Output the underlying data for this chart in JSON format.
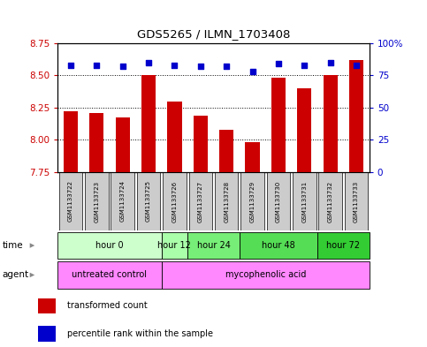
{
  "title": "GDS5265 / ILMN_1703408",
  "samples": [
    "GSM1133722",
    "GSM1133723",
    "GSM1133724",
    "GSM1133725",
    "GSM1133726",
    "GSM1133727",
    "GSM1133728",
    "GSM1133729",
    "GSM1133730",
    "GSM1133731",
    "GSM1133732",
    "GSM1133733"
  ],
  "transformed_count": [
    8.22,
    8.21,
    8.17,
    8.5,
    8.3,
    8.19,
    8.08,
    7.98,
    8.48,
    8.4,
    8.5,
    8.62
  ],
  "percentile_rank": [
    83,
    83,
    82,
    85,
    83,
    82,
    82,
    78,
    84,
    83,
    85,
    83
  ],
  "ylim_left": [
    7.75,
    8.75
  ],
  "ylim_right": [
    0,
    100
  ],
  "yticks_left": [
    7.75,
    8.0,
    8.25,
    8.5,
    8.75
  ],
  "yticks_right": [
    0,
    25,
    50,
    75,
    100
  ],
  "bar_color": "#cc0000",
  "dot_color": "#0000cc",
  "bar_width": 0.55,
  "time_groups": [
    {
      "label": "hour 0",
      "start": 0,
      "end": 3,
      "color": "#ccffcc"
    },
    {
      "label": "hour 12",
      "start": 4,
      "end": 4,
      "color": "#aaffaa"
    },
    {
      "label": "hour 24",
      "start": 5,
      "end": 6,
      "color": "#77ee77"
    },
    {
      "label": "hour 48",
      "start": 7,
      "end": 9,
      "color": "#55dd55"
    },
    {
      "label": "hour 72",
      "start": 10,
      "end": 11,
      "color": "#33cc33"
    }
  ],
  "agent_groups": [
    {
      "label": "untreated control",
      "start": 0,
      "end": 3,
      "color": "#ff88ff"
    },
    {
      "label": "mycophenolic acid",
      "start": 4,
      "end": 11,
      "color": "#ff88ff"
    }
  ],
  "legend_bar_label": "transformed count",
  "legend_dot_label": "percentile rank within the sample",
  "time_label": "time",
  "agent_label": "agent",
  "background_color": "#ffffff",
  "axis_label_color_left": "#cc0000",
  "axis_label_color_right": "#0000cc",
  "sample_box_color": "#cccccc",
  "plot_border_color": "#000000"
}
